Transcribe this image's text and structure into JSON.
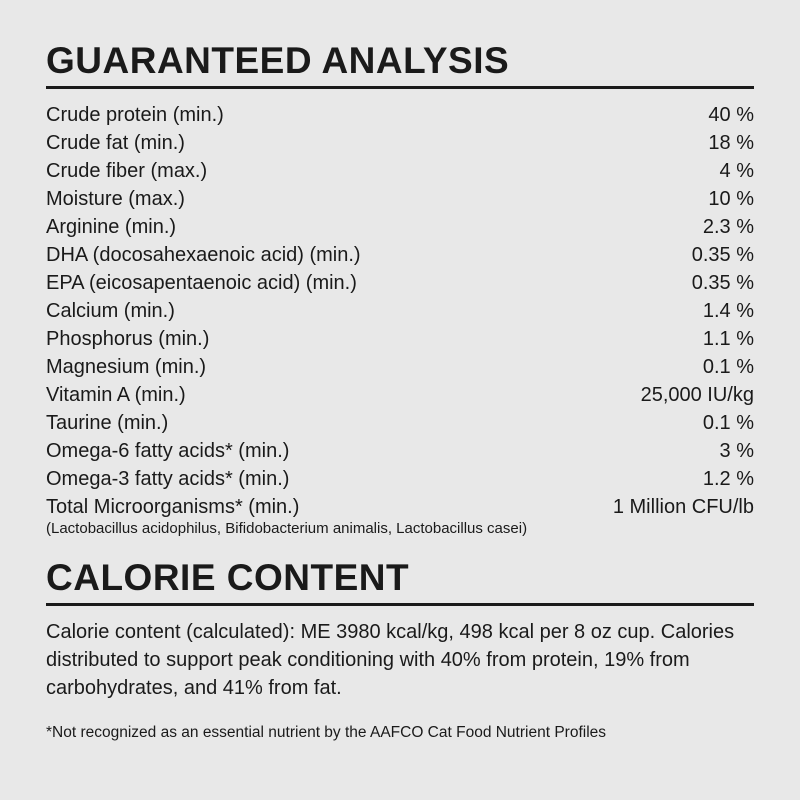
{
  "sections": {
    "analysis": {
      "title": "GUARANTEED ANALYSIS",
      "nutrients": [
        {
          "label": "Crude protein (min.)",
          "value": "40 %"
        },
        {
          "label": "Crude fat (min.)",
          "value": "18 %"
        },
        {
          "label": "Crude fiber (max.)",
          "value": "4 %"
        },
        {
          "label": "Moisture (max.)",
          "value": "10 %"
        },
        {
          "label": "Arginine (min.)",
          "value": "2.3 %"
        },
        {
          "label": "DHA (docosahexaenoic acid) (min.)",
          "value": "0.35 %"
        },
        {
          "label": "EPA (eicosapentaenoic acid) (min.)",
          "value": "0.35 %"
        },
        {
          "label": "Calcium (min.)",
          "value": "1.4 %"
        },
        {
          "label": "Phosphorus (min.)",
          "value": "1.1 %"
        },
        {
          "label": "Magnesium (min.)",
          "value": "0.1 %"
        },
        {
          "label": "Vitamin A (min.)",
          "value": "25,000 IU/kg"
        },
        {
          "label": "Taurine (min.)",
          "value": "0.1 %"
        },
        {
          "label": "Omega-6 fatty acids* (min.)",
          "value": "3 %"
        },
        {
          "label": "Omega-3 fatty acids* (min.)",
          "value": "1.2 %"
        },
        {
          "label": "Total Microorganisms* (min.)",
          "value": "1 Million CFU/lb",
          "sublabel": "(Lactobacillus acidophilus, Bifidobacterium animalis, Lactobacillus casei)"
        }
      ]
    },
    "calorie": {
      "title": "CALORIE CONTENT",
      "text": "Calorie content (calculated): ME 3980 kcal/kg, 498 kcal per 8 oz cup. Calories distributed to support peak conditioning with 40% from protein, 19% from carbohydrates, and 41% from fat."
    },
    "footnote": "*Not recognized as an essential nutrient by the AAFCO Cat Food Nutrient Profiles"
  },
  "styling": {
    "background_color": "#e8e8e8",
    "text_color": "#1a1a1a",
    "title_fontsize": 37,
    "body_fontsize": 20,
    "sublabel_fontsize": 15,
    "footnote_fontsize": 15.5,
    "divider_color": "#1a1a1a",
    "divider_width": 3
  }
}
